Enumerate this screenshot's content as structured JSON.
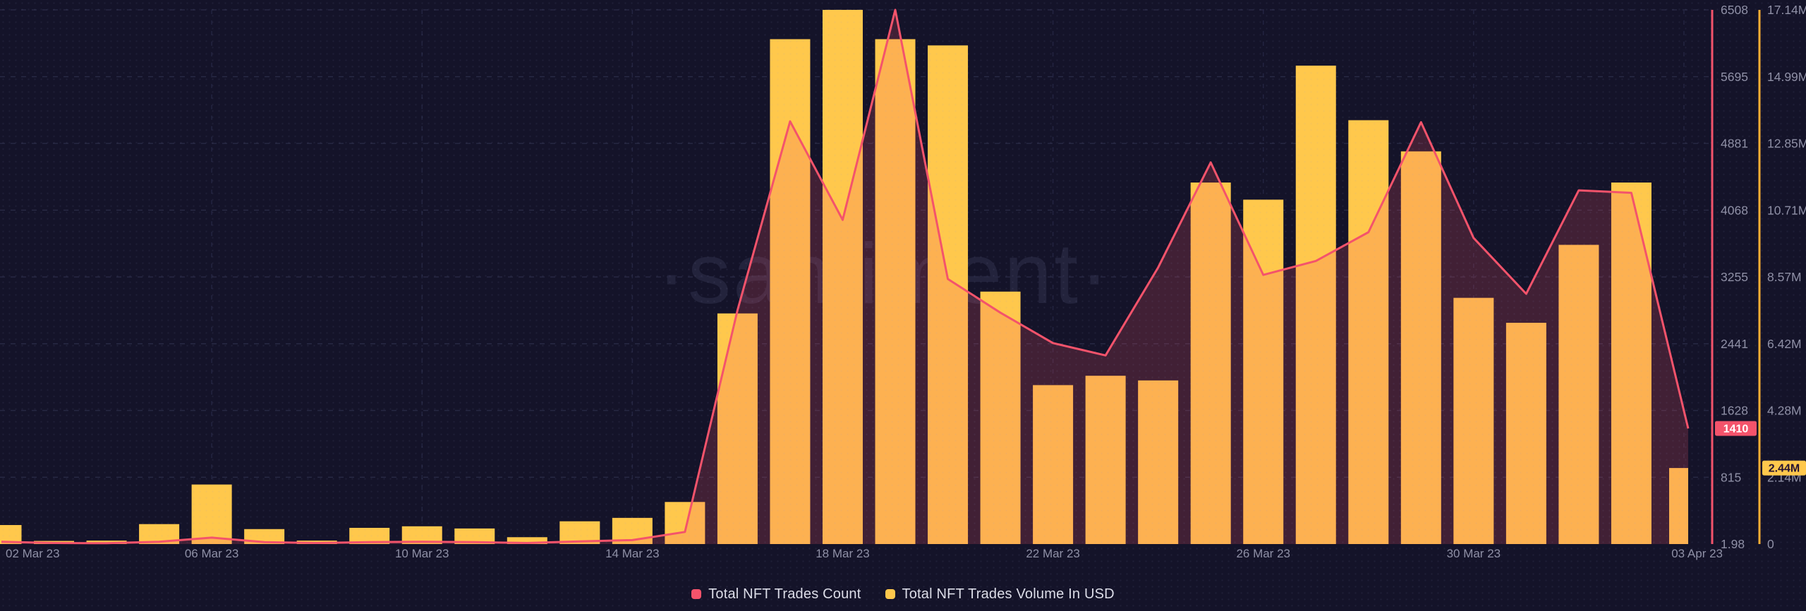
{
  "watermark": "·santiment·",
  "legend": {
    "count_label": "Total NFT Trades Count",
    "volume_label": "Total NFT Trades Volume In USD"
  },
  "current_values": {
    "count_badge": "1410",
    "volume_badge": "2.44M"
  },
  "colors": {
    "background": "#141329",
    "bar": "#FFC84C",
    "line": "#F4536B",
    "area_fill": "rgba(244,83,107,0.20)",
    "count_axis_line": "#F4536B",
    "volume_axis_line": "#FEAF34",
    "grid_horizontal": "#272843",
    "grid_vertical": "#232440",
    "tick_text": "#8F90A6",
    "badge_count_bg": "#F4536B",
    "badge_count_text": "#FFFFFF",
    "badge_volume_bg": "#FFC84C",
    "badge_volume_text": "#241232",
    "watermark_color": "rgba(148,153,196,0.12)"
  },
  "chart_data": {
    "type": "bar+line dual-axis time series",
    "title": "",
    "xlabel": "",
    "ylabel_left": "",
    "grid": "dashed horizontal and vertical",
    "legend_position": "bottom-center",
    "dates": [
      "2023-03-02",
      "2023-03-03",
      "2023-03-04",
      "2023-03-05",
      "2023-03-06",
      "2023-03-07",
      "2023-03-08",
      "2023-03-09",
      "2023-03-10",
      "2023-03-11",
      "2023-03-12",
      "2023-03-13",
      "2023-03-14",
      "2023-03-15",
      "2023-03-16",
      "2023-03-17",
      "2023-03-18",
      "2023-03-19",
      "2023-03-20",
      "2023-03-21",
      "2023-03-22",
      "2023-03-23",
      "2023-03-24",
      "2023-03-25",
      "2023-03-26",
      "2023-03-27",
      "2023-03-28",
      "2023-03-29",
      "2023-03-30",
      "2023-03-31",
      "2023-04-01",
      "2023-04-02",
      "2023-04-03"
    ],
    "x_tick_labels": [
      "02 Mar 23",
      "06 Mar 23",
      "10 Mar 23",
      "14 Mar 23",
      "18 Mar 23",
      "22 Mar 23",
      "26 Mar 23",
      "30 Mar 23",
      "03 Apr 23"
    ],
    "x_tick_days": [
      0,
      4,
      8,
      12,
      16,
      20,
      24,
      28,
      32
    ],
    "series": [
      {
        "name": "Total NFT Trades Count",
        "type": "line",
        "axis": "count",
        "values": [
          30,
          15,
          12,
          30,
          80,
          25,
          15,
          25,
          30,
          25,
          15,
          35,
          50,
          150,
          2850,
          5150,
          3950,
          6508,
          3230,
          2820,
          2450,
          2300,
          3370,
          4650,
          3280,
          3450,
          3800,
          5140,
          3730,
          3050,
          4310,
          4280,
          1410
        ],
        "last_value": 1410
      },
      {
        "name": "Total NFT Trades Volume In USD",
        "type": "bar",
        "axis": "volume_usd_millions",
        "values": [
          0.61,
          0.1,
          0.11,
          0.64,
          1.91,
          0.48,
          0.11,
          0.52,
          0.57,
          0.5,
          0.22,
          0.73,
          0.84,
          1.35,
          7.4,
          16.2,
          17.14,
          16.2,
          16.0,
          8.1,
          5.1,
          5.4,
          5.25,
          11.6,
          11.05,
          15.35,
          13.6,
          12.6,
          7.9,
          7.1,
          9.6,
          11.6,
          2.44
        ],
        "last_value_label": "2.44M"
      }
    ],
    "count_axis": {
      "side": "right-inner",
      "min": 1.98,
      "max": 6508,
      "ticks": [
        "6508",
        "5695",
        "4881",
        "4068",
        "3255",
        "2441",
        "1628",
        "815",
        "1.98"
      ]
    },
    "volume_axis": {
      "side": "right-outer",
      "min": 0,
      "max": 17140000,
      "ticks": [
        "17.14M",
        "14.99M",
        "12.85M",
        "10.71M",
        "8.57M",
        "6.42M",
        "4.28M",
        "2.14M",
        "0"
      ]
    }
  }
}
